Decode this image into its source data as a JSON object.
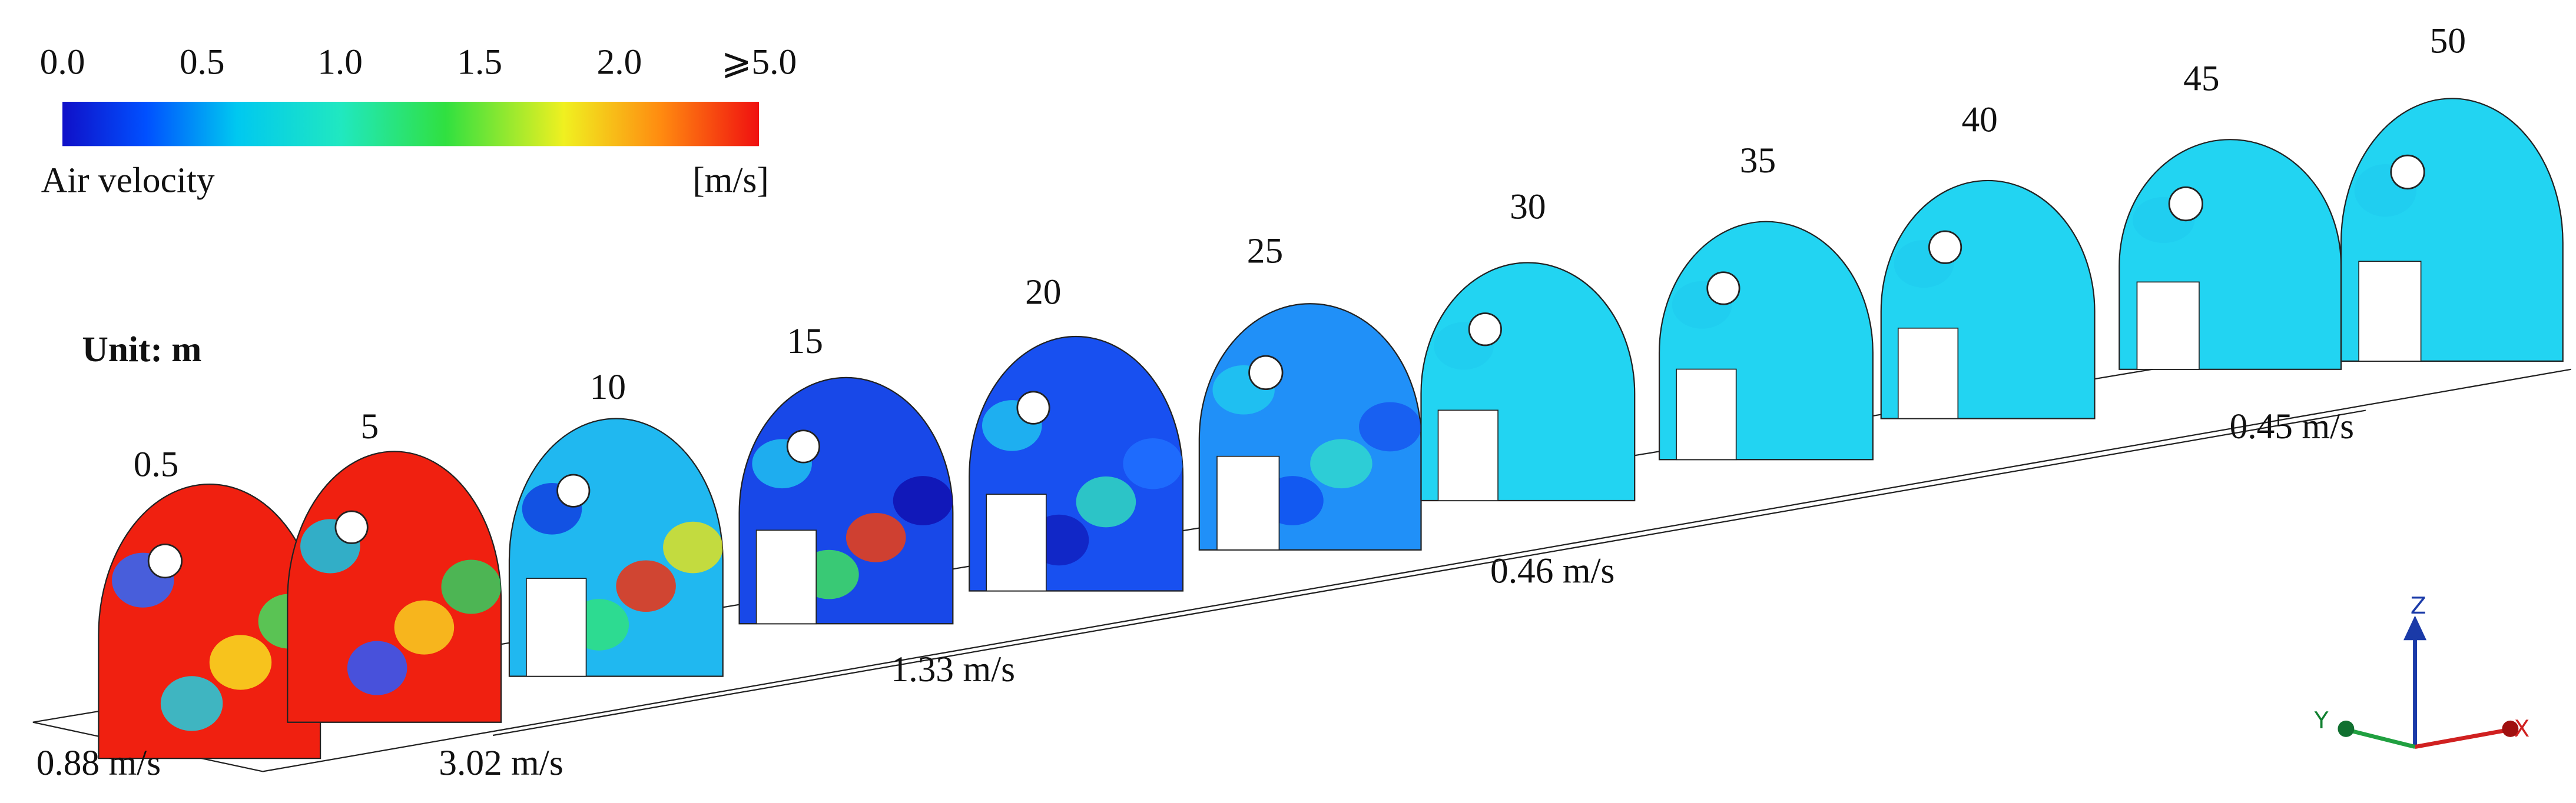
{
  "legend": {
    "ticks": [
      "0.0",
      "0.5",
      "1.0",
      "1.5",
      "2.0",
      "⩾5.0"
    ],
    "title": "Air velocity",
    "unit": "[m/s]"
  },
  "unit_note": "Unit: m",
  "sections": [
    {
      "label": "0.5"
    },
    {
      "label": "5"
    },
    {
      "label": "10"
    },
    {
      "label": "15"
    },
    {
      "label": "20"
    },
    {
      "label": "25"
    },
    {
      "label": "30"
    },
    {
      "label": "35"
    },
    {
      "label": "40"
    },
    {
      "label": "45"
    },
    {
      "label": "50"
    }
  ],
  "velocities": [
    "0.88 m/s",
    "3.02 m/s",
    "1.33 m/s",
    "0.46 m/s",
    "0.45 m/s"
  ],
  "axes": {
    "z": "Z",
    "y": "Y",
    "x": "X"
  }
}
